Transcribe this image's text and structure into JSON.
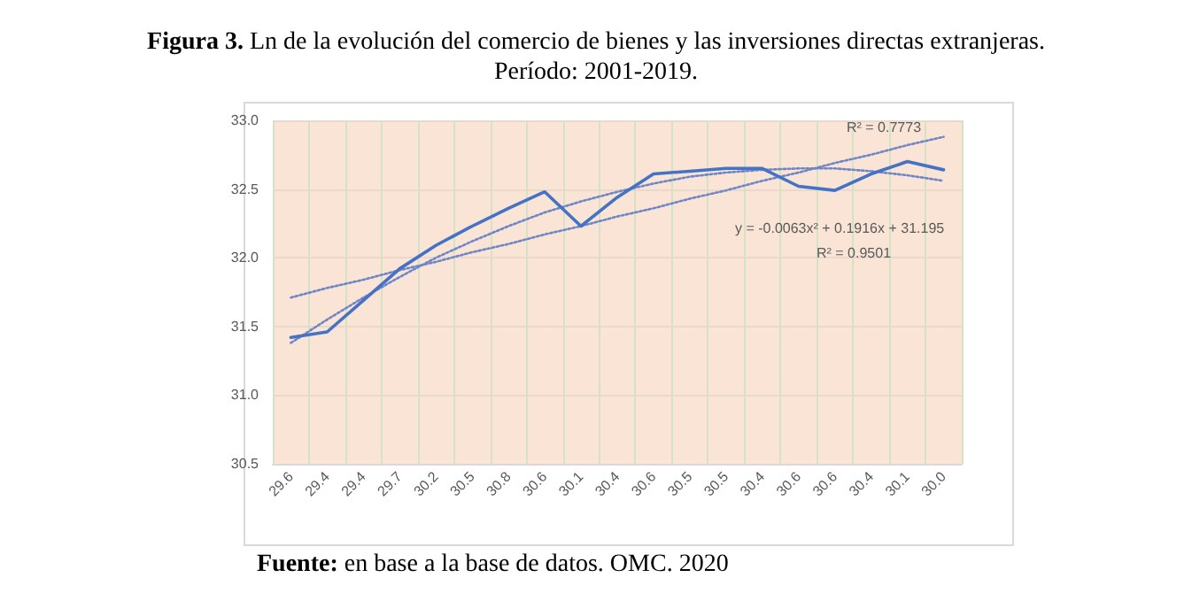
{
  "chart_data": {
    "type": "line",
    "title": "Figura 3. Ln de la evolución del comercio de bienes y las inversiones directas extranjeras.",
    "subtitle": "Período: 2001-2019.",
    "categories": [
      "29.6",
      "29.4",
      "29.4",
      "29.7",
      "30.2",
      "30.5",
      "30.8",
      "30.6",
      "30.1",
      "30.4",
      "30.6",
      "30.5",
      "30.5",
      "30.4",
      "30.6",
      "30.6",
      "30.4",
      "30.1",
      "30.0"
    ],
    "series": [
      {
        "color": "#4472c4",
        "values": [
          31.42,
          31.46,
          31.69,
          31.92,
          32.09,
          32.23,
          32.36,
          32.48,
          32.23,
          32.44,
          32.61,
          32.63,
          32.65,
          32.65,
          32.52,
          32.49,
          32.61,
          32.7,
          32.64
        ]
      },
      {
        "type": "line",
        "color": "#6f86c6",
        "line_style": "dotted",
        "values": [
          31.71,
          31.78,
          31.84,
          31.91,
          31.97,
          32.04,
          32.1,
          32.17,
          32.23,
          32.3,
          32.36,
          32.43,
          32.49,
          32.56,
          32.62,
          32.69,
          32.75,
          32.82,
          32.88
        ]
      },
      {
        "type": "line",
        "color": "#6f86c6",
        "line_style": "dotted",
        "values": [
          31.38,
          31.55,
          31.71,
          31.86,
          32.0,
          32.12,
          32.23,
          32.33,
          32.41,
          32.48,
          32.54,
          32.59,
          32.62,
          32.64,
          32.65,
          32.65,
          32.63,
          32.6,
          32.56
        ]
      }
    ],
    "ylim": [
      30.5,
      33.0
    ],
    "yticks": [
      30.5,
      {
        "value": 31,
        "label": "31.0"
      },
      31.5,
      {
        "value": 32,
        "label": "32.0"
      },
      32.5,
      {
        "value": 33,
        "label": "33.0"
      }
    ],
    "grid": true,
    "marker": "none",
    "line_style": "solid",
    "annotations": [
      "R² = 0.7773",
      "y = -0.0063x² + 0.1916x + 31.195",
      "R² = 0.9501",
      "Fuente: en base a la base de datos. OMC. 2020"
    ]
  }
}
